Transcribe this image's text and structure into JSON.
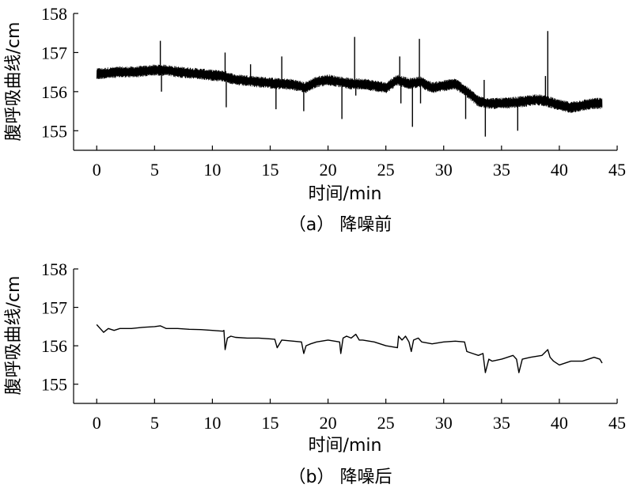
{
  "chart_data": [
    {
      "type": "line",
      "caption": "（a） 降噪前",
      "xlabel": "时间/min",
      "ylabel": "腹呼吸曲线/cm",
      "xlim": [
        -2,
        45
      ],
      "ylim": [
        154.5,
        158
      ],
      "xticks": [
        0,
        5,
        10,
        15,
        20,
        25,
        30,
        35,
        40,
        45
      ],
      "yticks": [
        155,
        156,
        157,
        158
      ],
      "grid": false,
      "series": [
        {
          "color": "#000000",
          "noisy": true,
          "band": 0.28,
          "x": [
            0,
            1,
            2,
            3,
            4,
            5,
            6,
            7,
            8,
            9,
            10,
            11,
            12,
            13,
            14,
            15,
            16,
            17,
            18,
            19,
            20,
            21,
            22,
            23,
            24,
            25,
            26,
            27,
            28,
            29,
            30,
            31,
            32,
            33,
            34,
            35,
            36,
            37,
            38,
            39,
            40,
            41,
            42,
            43,
            43.7
          ],
          "y": [
            156.45,
            156.48,
            156.5,
            156.5,
            156.52,
            156.55,
            156.55,
            156.5,
            156.48,
            156.45,
            156.42,
            156.4,
            156.3,
            156.28,
            156.25,
            156.22,
            156.2,
            156.18,
            156.1,
            156.25,
            156.3,
            156.25,
            156.2,
            156.2,
            156.15,
            156.1,
            156.3,
            156.2,
            156.25,
            156.1,
            156.15,
            156.2,
            156.0,
            155.75,
            155.7,
            155.7,
            155.72,
            155.75,
            155.8,
            155.75,
            155.65,
            155.6,
            155.65,
            155.7,
            155.7
          ],
          "spikes": [
            {
              "x": 0.2,
              "y": 156.6
            },
            {
              "x": 5.5,
              "y": 157.3
            },
            {
              "x": 5.6,
              "y": 156.0
            },
            {
              "x": 11.1,
              "y": 157.0
            },
            {
              "x": 11.2,
              "y": 155.6
            },
            {
              "x": 13.3,
              "y": 156.7
            },
            {
              "x": 15.5,
              "y": 155.55
            },
            {
              "x": 16.0,
              "y": 156.9
            },
            {
              "x": 17.9,
              "y": 155.5
            },
            {
              "x": 21.2,
              "y": 155.3
            },
            {
              "x": 22.3,
              "y": 157.4
            },
            {
              "x": 22.4,
              "y": 155.9
            },
            {
              "x": 26.2,
              "y": 156.9
            },
            {
              "x": 26.3,
              "y": 155.7
            },
            {
              "x": 27.3,
              "y": 155.1
            },
            {
              "x": 27.9,
              "y": 157.35
            },
            {
              "x": 28.0,
              "y": 155.7
            },
            {
              "x": 31.9,
              "y": 155.3
            },
            {
              "x": 33.5,
              "y": 156.3
            },
            {
              "x": 33.6,
              "y": 154.85
            },
            {
              "x": 36.4,
              "y": 155.0
            },
            {
              "x": 38.8,
              "y": 156.4
            },
            {
              "x": 39.0,
              "y": 157.55
            },
            {
              "x": 39.1,
              "y": 155.6
            }
          ]
        }
      ]
    },
    {
      "type": "line",
      "caption": "（b） 降噪后",
      "xlabel": "时间/min",
      "ylabel": "腹呼吸曲线/cm",
      "xlim": [
        -2,
        45
      ],
      "ylim": [
        154.5,
        158
      ],
      "xticks": [
        0,
        5,
        10,
        15,
        20,
        25,
        30,
        35,
        40,
        45
      ],
      "yticks": [
        155,
        156,
        157,
        158
      ],
      "grid": false,
      "series": [
        {
          "color": "#000000",
          "noisy": false,
          "x": [
            0,
            0.3,
            0.6,
            1,
            1.5,
            2,
            3,
            4,
            5,
            5.5,
            6,
            7,
            8,
            9,
            10,
            10.9,
            11,
            11.1,
            11.3,
            11.6,
            12,
            13,
            14,
            15,
            15.4,
            15.6,
            16,
            17,
            17.7,
            17.9,
            18.1,
            18.5,
            19,
            20,
            21,
            21.1,
            21.3,
            21.6,
            22,
            22.4,
            22.7,
            23,
            24,
            25,
            26,
            26.1,
            26.4,
            26.7,
            27,
            27.2,
            27.4,
            27.8,
            28.1,
            29,
            30,
            31,
            31.8,
            32,
            32.5,
            33,
            33.4,
            33.6,
            33.9,
            34.2,
            35,
            36,
            36.3,
            36.5,
            36.8,
            37.5,
            38.5,
            39,
            39.2,
            39.5,
            40,
            41,
            42,
            43,
            43.5,
            43.7
          ],
          "y": [
            156.55,
            156.45,
            156.35,
            156.45,
            156.4,
            156.45,
            156.45,
            156.48,
            156.5,
            156.52,
            156.45,
            156.45,
            156.43,
            156.42,
            156.4,
            156.38,
            156.4,
            155.9,
            156.2,
            156.25,
            156.22,
            156.2,
            156.2,
            156.18,
            156.17,
            155.95,
            156.15,
            156.12,
            156.1,
            155.8,
            156.0,
            156.05,
            156.1,
            156.15,
            156.1,
            155.8,
            156.2,
            156.25,
            156.2,
            156.3,
            156.15,
            156.15,
            156.1,
            156.0,
            155.95,
            156.25,
            156.15,
            156.25,
            156.1,
            155.85,
            156.15,
            156.2,
            156.1,
            156.05,
            156.1,
            156.12,
            156.1,
            155.85,
            155.8,
            155.75,
            155.8,
            155.3,
            155.65,
            155.6,
            155.65,
            155.75,
            155.65,
            155.3,
            155.65,
            155.7,
            155.75,
            155.9,
            155.7,
            155.6,
            155.5,
            155.6,
            155.6,
            155.7,
            155.65,
            155.55
          ]
        }
      ]
    }
  ]
}
